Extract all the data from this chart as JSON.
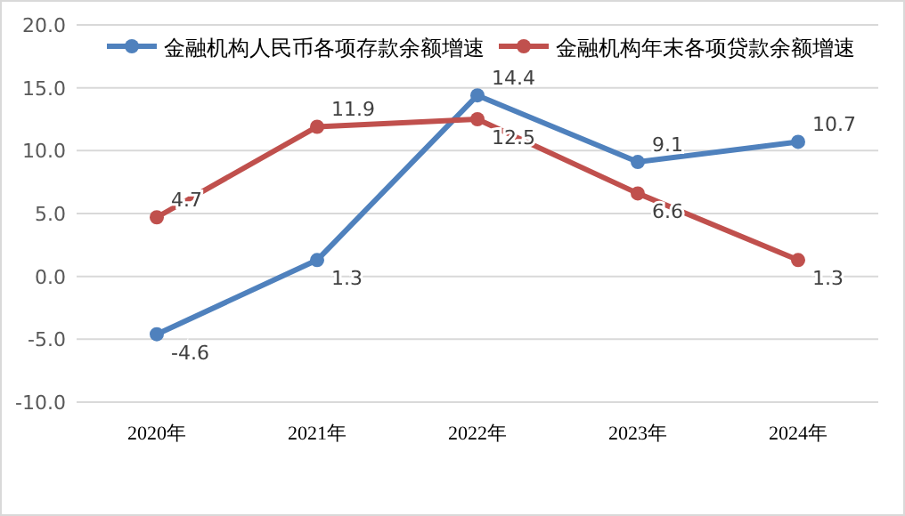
{
  "chart_data": {
    "type": "line",
    "categories": [
      "2020年",
      "2021年",
      "2022年",
      "2023年",
      "2024年"
    ],
    "series": [
      {
        "name": "金融机构人民币各项存款余额增速",
        "color": "#4f81bd",
        "values": [
          -4.6,
          1.3,
          14.4,
          9.1,
          10.7
        ]
      },
      {
        "name": "金融机构年末各项贷款余额增速",
        "color": "#c0504d",
        "values": [
          4.7,
          11.9,
          12.5,
          6.6,
          1.3
        ]
      }
    ],
    "ylim": [
      -10,
      20
    ],
    "yticks": [
      {
        "value": -10,
        "label": "-10.0"
      },
      {
        "value": -5,
        "label": "-5.0"
      },
      {
        "value": 0,
        "label": "0.0"
      },
      {
        "value": 5,
        "label": "5.0"
      },
      {
        "value": 10,
        "label": "10.0"
      },
      {
        "value": 15,
        "label": "15.0"
      },
      {
        "value": 20,
        "label": "20.0"
      }
    ],
    "grid": "y",
    "legend": "top",
    "marker": "circle",
    "line_style": "solid",
    "data_labels": true
  }
}
